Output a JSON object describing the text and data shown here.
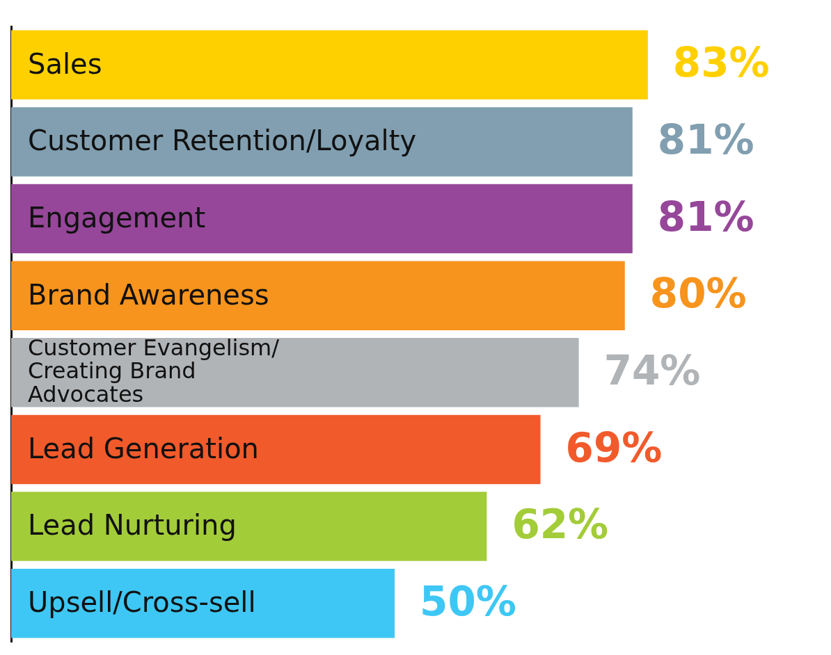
{
  "chart_data": {
    "type": "bar",
    "orientation": "horizontal",
    "categories": [
      "Sales",
      "Customer Retention/Loyalty",
      "Engagement",
      "Brand Awareness",
      "Customer Evangelism/ Creating Brand Advocates",
      "Lead Generation",
      "Lead Nurturing",
      "Upsell/Cross-sell"
    ],
    "values": [
      83,
      81,
      81,
      80,
      74,
      69,
      62,
      50
    ],
    "colors": [
      "#ffd000",
      "#819fb0",
      "#964799",
      "#f7941d",
      "#b1b4b7",
      "#f15a2b",
      "#a3cc39",
      "#3ec7f4"
    ],
    "value_labels": [
      "83%",
      "81%",
      "81%",
      "80%",
      "74%",
      "69%",
      "62%",
      "50%"
    ],
    "tick_labels": false,
    "grid": false,
    "legend": false
  }
}
